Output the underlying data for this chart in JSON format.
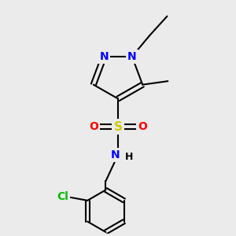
{
  "bg_color": "#ebebeb",
  "bond_color": "#000000",
  "N_color": "#0000ff",
  "O_color": "#ff0000",
  "S_color": "#cccc00",
  "Cl_color": "#00bb00",
  "line_width": 1.5,
  "figsize": [
    3.0,
    3.0
  ],
  "dpi": 100,
  "xlim": [
    -2.5,
    2.5
  ],
  "ylim": [
    -3.8,
    2.8
  ]
}
